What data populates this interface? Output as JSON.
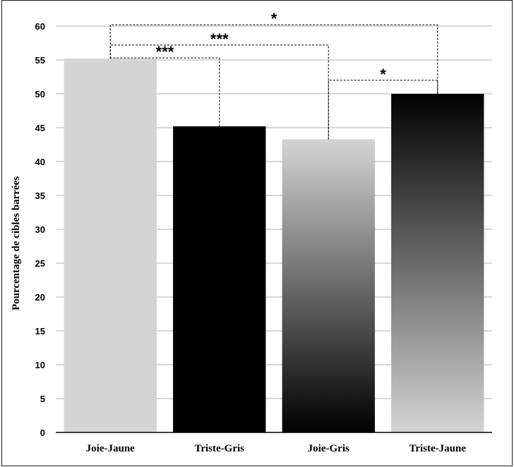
{
  "chart_data": {
    "type": "bar",
    "title": "",
    "xlabel": "",
    "ylabel": "Pourcentage de cibles barrées",
    "ylim": [
      0,
      60
    ],
    "yticks": [
      0,
      5,
      10,
      15,
      20,
      25,
      30,
      35,
      40,
      45,
      50,
      55,
      60
    ],
    "grid": true,
    "categories": [
      "Joie-Jaune",
      "Triste-Gris",
      "Joie-Gris",
      "Triste-Jaune"
    ],
    "values": [
      55.2,
      45.2,
      43.3,
      50.0
    ],
    "bar_fills": [
      {
        "type": "solid",
        "color": "#d4d4d4"
      },
      {
        "type": "solid",
        "color": "#000000"
      },
      {
        "type": "gradient",
        "top": "#d4d4d4",
        "bottom": "#000000"
      },
      {
        "type": "gradient",
        "top": "#000000",
        "bottom": "#d4d4d4"
      }
    ],
    "significance": [
      {
        "from": 0,
        "to": 3,
        "label": "*",
        "bracket_y": 60.2
      },
      {
        "from": 0,
        "to": 2,
        "label": "***",
        "bracket_y": 57.2
      },
      {
        "from": 0,
        "to": 1,
        "label": "***",
        "bracket_y": 55.3
      },
      {
        "from": 2,
        "to": 3,
        "label": "*",
        "bracket_y": 52.0
      }
    ]
  }
}
